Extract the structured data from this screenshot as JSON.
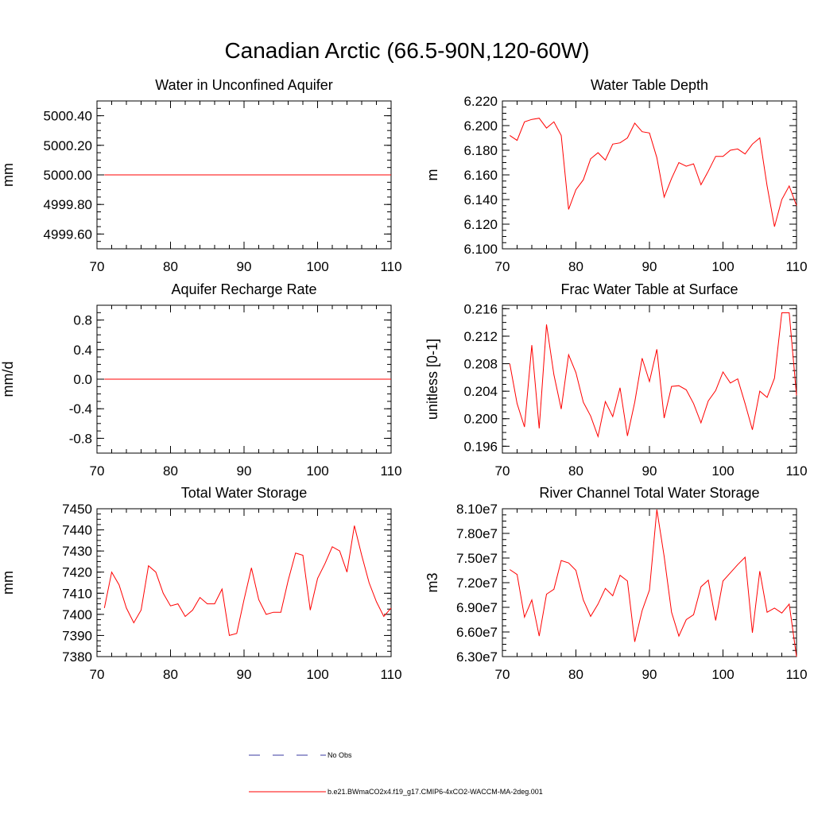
{
  "title": "Canadian Arctic (66.5-90N,120-60W)",
  "legend": [
    {
      "label": "No Obs",
      "color": "#3a3aa0",
      "dash": true
    },
    {
      "label": "b.e21.BWmaCO2x4.f19_g17.CMIP6-4xCO2-WACCM-MA-2deg.001",
      "color": "#ff0000",
      "dash": false
    }
  ],
  "chart_data": [
    {
      "type": "line",
      "title": "Water in Unconfined Aquifer",
      "ylabel": "mm",
      "xlim": [
        70,
        110
      ],
      "ylim": [
        4999.5,
        5000.5
      ],
      "xticks": [
        70,
        80,
        90,
        100,
        110
      ],
      "yticks": [
        4999.6,
        4999.8,
        5000.0,
        5000.2,
        5000.4
      ],
      "ytick_labels": [
        "4999.60",
        "4999.80",
        "5000.00",
        "5000.20",
        "5000.40"
      ],
      "color": "#ff0000",
      "x": [
        71,
        110
      ],
      "y": [
        5000.0,
        5000.0
      ]
    },
    {
      "type": "line",
      "title": "Water Table Depth",
      "ylabel": "m",
      "xlim": [
        70,
        110
      ],
      "ylim": [
        6.1,
        6.22
      ],
      "xticks": [
        70,
        80,
        90,
        100,
        110
      ],
      "yticks": [
        6.1,
        6.12,
        6.14,
        6.16,
        6.18,
        6.2,
        6.22
      ],
      "ytick_labels": [
        "6.100",
        "6.120",
        "6.140",
        "6.160",
        "6.180",
        "6.200",
        "6.220"
      ],
      "color": "#ff0000",
      "x": [
        71,
        72,
        73,
        74,
        75,
        76,
        77,
        78,
        79,
        80,
        81,
        82,
        83,
        84,
        85,
        86,
        87,
        88,
        89,
        90,
        91,
        92,
        93,
        94,
        95,
        96,
        97,
        98,
        99,
        100,
        101,
        102,
        103,
        104,
        105,
        106,
        107,
        108,
        109,
        110
      ],
      "y": [
        6.192,
        6.188,
        6.203,
        6.205,
        6.206,
        6.198,
        6.203,
        6.192,
        6.132,
        6.148,
        6.156,
        6.173,
        6.178,
        6.172,
        6.185,
        6.186,
        6.19,
        6.202,
        6.195,
        6.194,
        6.174,
        6.142,
        6.157,
        6.17,
        6.167,
        6.169,
        6.152,
        6.163,
        6.175,
        6.175,
        6.18,
        6.181,
        6.177,
        6.185,
        6.19,
        6.151,
        6.118,
        6.14,
        6.151,
        6.135
      ]
    },
    {
      "type": "line",
      "title": "Aquifer Recharge Rate",
      "ylabel": "mm/d",
      "xlim": [
        70,
        110
      ],
      "ylim": [
        -1.0,
        1.0
      ],
      "xticks": [
        70,
        80,
        90,
        100,
        110
      ],
      "yticks": [
        -0.8,
        -0.4,
        0.0,
        0.4,
        0.8
      ],
      "ytick_labels": [
        "-0.8",
        "-0.4",
        "0.0",
        "0.4",
        "0.8"
      ],
      "color": "#ff0000",
      "x": [
        71,
        110
      ],
      "y": [
        0.0,
        0.0
      ]
    },
    {
      "type": "line",
      "title": "Frac Water Table at Surface",
      "ylabel": "unitless [0-1]",
      "xlim": [
        70,
        110
      ],
      "ylim": [
        0.195,
        0.2165
      ],
      "xticks": [
        70,
        80,
        90,
        100,
        110
      ],
      "yticks": [
        0.196,
        0.2,
        0.204,
        0.208,
        0.212,
        0.216
      ],
      "ytick_labels": [
        "0.196",
        "0.200",
        "0.204",
        "0.208",
        "0.212",
        "0.216"
      ],
      "color": "#ff0000",
      "x": [
        71,
        72,
        73,
        74,
        75,
        76,
        77,
        78,
        79,
        80,
        81,
        82,
        83,
        84,
        85,
        86,
        87,
        88,
        89,
        90,
        91,
        92,
        93,
        94,
        95,
        96,
        97,
        98,
        99,
        100,
        101,
        102,
        103,
        104,
        105,
        106,
        107,
        108,
        109,
        110
      ],
      "y": [
        0.208,
        0.2022,
        0.1988,
        0.2107,
        0.1986,
        0.2137,
        0.2064,
        0.2014,
        0.2093,
        0.2067,
        0.2024,
        0.2004,
        0.1974,
        0.2025,
        0.2003,
        0.2045,
        0.1975,
        0.2024,
        0.2088,
        0.2054,
        0.2101,
        0.2001,
        0.2047,
        0.2048,
        0.2042,
        0.2022,
        0.1994,
        0.2026,
        0.2041,
        0.2068,
        0.2052,
        0.2058,
        0.2022,
        0.1984,
        0.204,
        0.2031,
        0.2059,
        0.2154,
        0.2154,
        0.2034
      ]
    },
    {
      "type": "line",
      "title": "Total Water Storage",
      "ylabel": "mm",
      "xlim": [
        70,
        110
      ],
      "ylim": [
        7380,
        7450
      ],
      "xticks": [
        70,
        80,
        90,
        100,
        110
      ],
      "yticks": [
        7380,
        7390,
        7400,
        7410,
        7420,
        7430,
        7440,
        7450
      ],
      "ytick_labels": [
        "7380",
        "7390",
        "7400",
        "7410",
        "7420",
        "7430",
        "7440",
        "7450"
      ],
      "color": "#ff0000",
      "x": [
        71,
        72,
        73,
        74,
        75,
        76,
        77,
        78,
        79,
        80,
        81,
        82,
        83,
        84,
        85,
        86,
        87,
        88,
        89,
        90,
        91,
        92,
        93,
        94,
        95,
        96,
        97,
        98,
        99,
        100,
        101,
        102,
        103,
        104,
        105,
        106,
        107,
        108,
        109,
        110
      ],
      "y": [
        7403,
        7420,
        7414,
        7403,
        7396,
        7402,
        7423,
        7420,
        7410,
        7404,
        7405,
        7399,
        7402,
        7408,
        7405,
        7405,
        7412,
        7390,
        7391,
        7407,
        7422,
        7407,
        7400,
        7401,
        7401,
        7416,
        7429,
        7428,
        7402,
        7417,
        7424,
        7432,
        7430,
        7420,
        7442,
        7428,
        7415,
        7406,
        7399,
        7403
      ]
    },
    {
      "type": "line",
      "title": "River Channel Total Water Storage",
      "ylabel": "m3",
      "xlim": [
        70,
        110
      ],
      "ylim": [
        63000000,
        81000000
      ],
      "xticks": [
        70,
        80,
        90,
        100,
        110
      ],
      "yticks": [
        63000000,
        66000000,
        69000000,
        72000000,
        75000000,
        78000000,
        81000000
      ],
      "ytick_labels": [
        "6.30e7",
        "6.60e7",
        "6.90e7",
        "7.20e7",
        "7.50e7",
        "7.80e7",
        "8.10e7"
      ],
      "color": "#ff0000",
      "x": [
        71,
        72,
        73,
        74,
        75,
        76,
        77,
        78,
        79,
        80,
        81,
        82,
        83,
        84,
        85,
        86,
        87,
        88,
        89,
        90,
        91,
        92,
        93,
        94,
        95,
        96,
        97,
        98,
        99,
        100,
        101,
        102,
        103,
        104,
        105,
        106,
        107,
        108,
        109,
        110
      ],
      "y": [
        73600000,
        73000000,
        67800000,
        69900000,
        65500000,
        70600000,
        71200000,
        74700000,
        74400000,
        73500000,
        69900000,
        67900000,
        69400000,
        71300000,
        70400000,
        72900000,
        72200000,
        64800000,
        68600000,
        71100000,
        80900000,
        75200000,
        68400000,
        65500000,
        67500000,
        68100000,
        71500000,
        72300000,
        67400000,
        72200000,
        73200000,
        74200000,
        75100000,
        65900000,
        73400000,
        68400000,
        68900000,
        68300000,
        69400000,
        63000000
      ]
    }
  ]
}
